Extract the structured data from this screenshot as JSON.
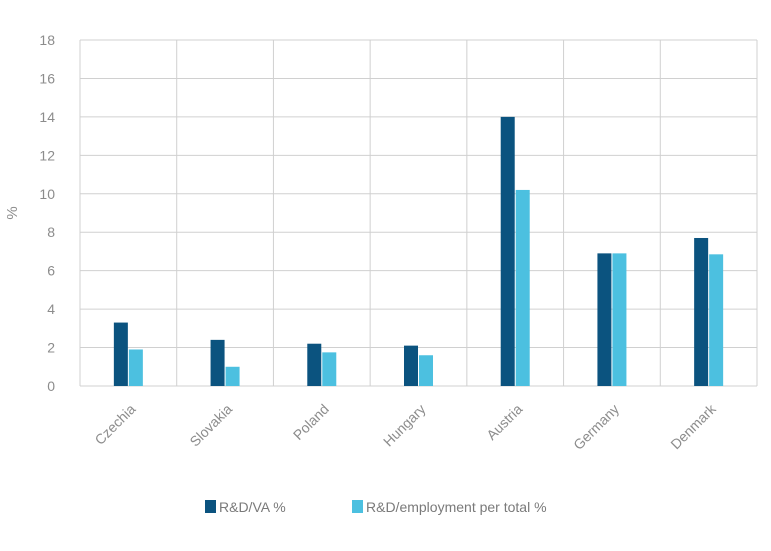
{
  "chart_data": {
    "type": "bar",
    "title": "",
    "xlabel": "",
    "ylabel": "%",
    "ylim": [
      0,
      18
    ],
    "yticks": [
      0,
      2,
      4,
      6,
      8,
      10,
      12,
      14,
      16,
      18
    ],
    "grid": true,
    "legend_position": "bottom",
    "categories": [
      "Czechia",
      "Slovakia",
      "Poland",
      "Hungary",
      "Austria",
      "Germany",
      "Denmark"
    ],
    "series": [
      {
        "name": "R&D/VA %",
        "color": "#0b537f",
        "values": [
          3.3,
          2.4,
          2.2,
          2.1,
          14.0,
          6.9,
          7.7
        ]
      },
      {
        "name": "R&D/employment per total %",
        "color": "#4cc0e0",
        "values": [
          1.9,
          1.0,
          1.75,
          1.6,
          10.2,
          6.9,
          6.85
        ]
      }
    ]
  }
}
